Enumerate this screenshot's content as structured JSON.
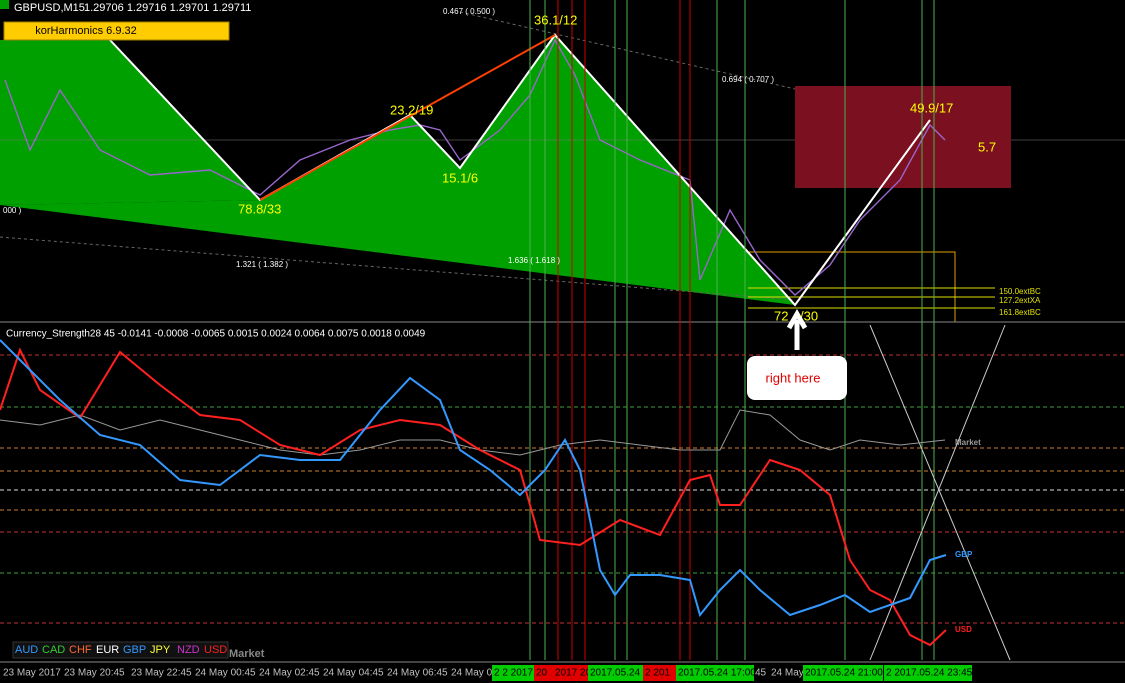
{
  "header": {
    "symbol": "GBPUSD,M15",
    "prices": "1.29706 1.29716 1.29701 1.29711"
  },
  "toolbar": {
    "indicator": "korHarmonics 6.9.32"
  },
  "price_panel": {
    "fib_labels": [
      "0.467 ( 0.500 )",
      "0.694 ( 0.707 )",
      "1.321 ( 1.382 )",
      "1.636 ( 1.618 )",
      "000 )"
    ],
    "point_labels": [
      "36.1/12",
      "23.2/19",
      "15.1/6",
      "78.8/33",
      "49.9/17",
      "72",
      "/30"
    ],
    "box_label": "5.7",
    "ext_labels": [
      "150.0extBC",
      "127.2extXA",
      "161.8extBC"
    ]
  },
  "strength_panel": {
    "title": "Currency_Strength28 45 -0.0141 -0.0008 -0.0065 0.0015 0.0024 0.0064 0.0075 0.0018 0.0049",
    "callout": "right here",
    "line_labels": [
      "Market",
      "GBP",
      "USD"
    ],
    "legend": [
      "AUD",
      "CAD",
      "CHF",
      "EUR",
      "GBP",
      "JPY",
      "NZD",
      "USD"
    ],
    "legend_market": "Market"
  },
  "time_axis": {
    "labels": [
      "23 May 2017",
      "23 May 20:45",
      "23 May 22:45",
      "24 May 00:45",
      "24 May 02:45",
      "24 May 04:45",
      "24 May 06:45",
      "24 May 0",
      "45",
      "24 May"
    ],
    "green_tags": [
      "2 2 2017",
      "2017.05.24 1",
      "2017.05.24 17:00",
      "2017.05.24 21:00",
      "2 2017.05.24 23:45"
    ],
    "red_tags": [
      "20",
      "2017 20",
      "2 201"
    ]
  }
}
